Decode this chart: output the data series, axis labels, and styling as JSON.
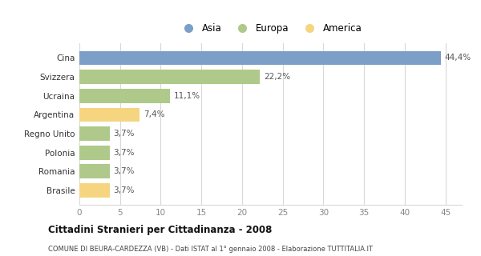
{
  "categories": [
    "Brasile",
    "Romania",
    "Polonia",
    "Regno Unito",
    "Argentina",
    "Ucraina",
    "Svizzera",
    "Cina"
  ],
  "values": [
    3.7,
    3.7,
    3.7,
    3.7,
    7.4,
    11.1,
    22.2,
    44.4
  ],
  "colors": [
    "#f5d580",
    "#aec98a",
    "#aec98a",
    "#aec98a",
    "#f5d580",
    "#aec98a",
    "#aec98a",
    "#7b9fc7"
  ],
  "labels": [
    "3,7%",
    "3,7%",
    "3,7%",
    "3,7%",
    "7,4%",
    "11,1%",
    "22,2%",
    "44,4%"
  ],
  "legend_labels": [
    "Asia",
    "Europa",
    "America"
  ],
  "legend_colors": [
    "#7b9fc7",
    "#aec98a",
    "#f5d580"
  ],
  "xlim": [
    0,
    47
  ],
  "xticks": [
    0,
    5,
    10,
    15,
    20,
    25,
    30,
    35,
    40,
    45
  ],
  "title": "Cittadini Stranieri per Cittadinanza - 2008",
  "subtitle": "COMUNE DI BEURA-CARDEZZA (VB) - Dati ISTAT al 1° gennaio 2008 - Elaborazione TUTTITALIA.IT",
  "bg_color": "#ffffff",
  "grid_color": "#d8d8d8"
}
